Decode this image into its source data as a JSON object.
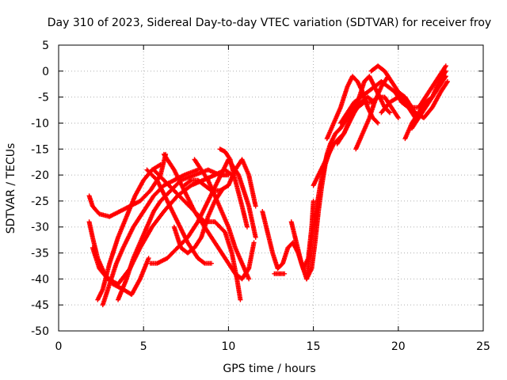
{
  "chart_data": {
    "type": "scatter",
    "title": "Day 310 of 2023, Sidereal Day-to-day VTEC variation (SDTVAR) for receiver froy",
    "xlabel": "GPS time / hours",
    "ylabel": "SDTVAR / TECUs",
    "xlim": [
      0,
      25
    ],
    "ylim": [
      -50,
      5
    ],
    "xticks": [
      0,
      5,
      10,
      15,
      20,
      25
    ],
    "yticks": [
      5,
      0,
      -5,
      -10,
      -15,
      -20,
      -25,
      -30,
      -35,
      -40,
      -45,
      -50
    ],
    "grid": true,
    "marker": "plus",
    "color": "#ff0000",
    "series": [
      {
        "x": [
          1.8,
          2.0,
          2.4,
          3.0,
          3.6,
          4.2,
          4.8,
          5.4,
          6.0,
          6.3
        ],
        "y": [
          -24,
          -26,
          -27.5,
          -28,
          -27,
          -26,
          -25,
          -23,
          -20,
          -16
        ]
      },
      {
        "x": [
          1.8,
          2.0,
          2.3,
          2.7,
          3.2,
          3.8,
          4.3,
          4.8,
          5.3
        ],
        "y": [
          -29,
          -32,
          -36,
          -39,
          -41,
          -42,
          -43,
          -40,
          -36
        ]
      },
      {
        "x": [
          2.0,
          2.4,
          2.9,
          3.5,
          4.2,
          4.8,
          5.5,
          6.2,
          7.0,
          7.8,
          8.5,
          9.2,
          9.8,
          10.2
        ],
        "y": [
          -34,
          -38,
          -40,
          -41,
          -38,
          -34,
          -30,
          -27,
          -24,
          -22,
          -21,
          -20,
          -19,
          -20
        ]
      },
      {
        "x": [
          2.3,
          2.6,
          3.0,
          3.5,
          4.0,
          4.5,
          5.0,
          5.5,
          6.0
        ],
        "y": [
          -44,
          -42,
          -37,
          -32,
          -28,
          -24,
          -21,
          -19,
          -18
        ]
      },
      {
        "x": [
          2.6,
          3.0,
          3.4,
          3.8,
          4.4,
          5.0,
          5.6,
          6.2,
          6.8,
          7.4,
          8.2
        ],
        "y": [
          -45,
          -41,
          -37,
          -34,
          -30,
          -27,
          -24,
          -22,
          -21,
          -20,
          -19
        ]
      },
      {
        "x": [
          3.5,
          4.0,
          4.4,
          4.8,
          5.2,
          5.6,
          6.0,
          6.6,
          7.2,
          8.0,
          8.8,
          9.5,
          10.0
        ],
        "y": [
          -44,
          -40,
          -36,
          -33,
          -30,
          -27,
          -25,
          -23,
          -21,
          -20,
          -19,
          -20,
          -20
        ]
      },
      {
        "x": [
          5.2,
          5.8,
          6.4,
          7.0,
          7.6,
          8.2,
          8.6,
          9.0
        ],
        "y": [
          -19,
          -21,
          -25,
          -29,
          -33,
          -36,
          -37,
          -37
        ]
      },
      {
        "x": [
          5.6,
          6.2,
          6.8,
          7.4,
          8.0,
          8.6,
          9.2,
          9.8,
          10.4,
          10.8,
          11.2,
          11.5
        ],
        "y": [
          -19,
          -21,
          -23,
          -25,
          -27,
          -30,
          -33,
          -36,
          -39,
          -40,
          -38,
          -33
        ]
      },
      {
        "x": [
          5.4,
          5.8,
          6.4,
          7.0,
          7.6,
          8.2,
          8.8,
          9.4,
          10.0,
          10.6,
          11.2,
          11.6
        ],
        "y": [
          -37,
          -37,
          -36,
          -34,
          -32,
          -29,
          -25,
          -21,
          -17,
          -20,
          -26,
          -32
        ]
      },
      {
        "x": [
          6.2,
          6.8,
          7.4,
          8.0,
          8.6,
          9.2,
          9.8,
          10.2,
          10.5,
          10.7
        ],
        "y": [
          -16,
          -19,
          -23,
          -27,
          -29,
          -29,
          -31,
          -35,
          -40,
          -44
        ]
      },
      {
        "x": [
          6.8,
          7.2,
          7.6,
          8.0,
          8.4,
          8.8,
          9.2,
          9.6
        ],
        "y": [
          -30,
          -34,
          -35,
          -34,
          -32,
          -28,
          -25,
          -23
        ]
      },
      {
        "x": [
          7.4,
          7.8,
          8.2,
          8.6,
          9.0,
          9.5,
          10.0,
          10.4,
          10.8,
          11.2,
          11.6
        ],
        "y": [
          -22,
          -21,
          -21,
          -22,
          -23,
          -23,
          -22,
          -19,
          -17,
          -20,
          -26
        ]
      },
      {
        "x": [
          8.0,
          8.4,
          8.8,
          9.2,
          9.6,
          10.0,
          10.4,
          10.8,
          11.2
        ],
        "y": [
          -17,
          -19,
          -21,
          -24,
          -27,
          -30,
          -34,
          -37,
          -40
        ]
      },
      {
        "x": [
          9.5,
          9.8,
          10.1,
          10.4,
          10.8,
          11.1
        ],
        "y": [
          -15,
          -15.5,
          -17,
          -21,
          -26,
          -30
        ]
      },
      {
        "x": [
          12.0,
          12.3,
          12.6,
          12.9,
          13.2,
          13.5,
          13.8,
          14.1,
          14.4,
          14.7,
          14.9,
          15.0
        ],
        "y": [
          -27,
          -31,
          -35,
          -38,
          -37,
          -34,
          -33,
          -35,
          -38,
          -36,
          -30,
          -25
        ]
      },
      {
        "x": [
          12.7,
          13.0,
          13.3
        ],
        "y": [
          -39,
          -39,
          -39
        ]
      },
      {
        "x": [
          13.7,
          14.0,
          14.3,
          14.6,
          14.9,
          15.1,
          15.3,
          15.5,
          15.7,
          16.0
        ],
        "y": [
          -29,
          -33,
          -37,
          -40,
          -38,
          -33,
          -27,
          -22,
          -18,
          -15
        ]
      },
      {
        "x": [
          14.6,
          14.8,
          15.0,
          15.2,
          15.4,
          15.6,
          15.8,
          16.0,
          16.3,
          16.6,
          17.0,
          17.4,
          17.8,
          18.2,
          18.6
        ],
        "y": [
          -40,
          -35,
          -30,
          -26,
          -22,
          -19,
          -16,
          -14,
          -12,
          -11,
          -9,
          -7,
          -6,
          -5,
          -6
        ]
      },
      {
        "x": [
          15.0,
          15.3,
          15.6,
          15.9,
          16.2,
          16.5,
          16.8,
          17.1,
          17.4,
          17.7,
          18.0,
          18.3,
          18.6,
          18.9,
          19.2,
          19.5
        ],
        "y": [
          -22,
          -20,
          -18,
          -16,
          -14,
          -13,
          -12,
          -10,
          -8,
          -5,
          -2,
          -1,
          -3,
          -5,
          -7,
          -8
        ]
      },
      {
        "x": [
          15.8,
          16.2,
          16.6,
          17.0,
          17.3,
          17.6,
          17.9,
          18.2,
          18.5,
          18.8
        ],
        "y": [
          -13,
          -10,
          -7,
          -3,
          -1,
          -2,
          -4,
          -7,
          -9,
          -10
        ]
      },
      {
        "x": [
          16.4,
          16.8,
          17.2,
          17.6,
          18.0,
          18.4,
          18.8,
          19.2,
          19.6,
          20.0
        ],
        "y": [
          -14,
          -12,
          -9,
          -7,
          -6,
          -6,
          -5,
          -5,
          -7,
          -9
        ]
      },
      {
        "x": [
          16.6,
          17.0,
          17.4,
          17.8,
          18.2,
          18.6,
          19.0,
          19.4,
          19.8,
          20.2,
          20.6,
          21.0
        ],
        "y": [
          -10,
          -8,
          -6,
          -5,
          -4,
          -3,
          -2,
          -3,
          -4,
          -6,
          -7,
          -9
        ]
      },
      {
        "x": [
          17.5,
          17.9,
          18.3,
          18.6,
          19.0,
          19.4
        ],
        "y": [
          -15,
          -12,
          -9,
          -6,
          -3,
          -1
        ]
      },
      {
        "x": [
          18.4,
          18.8,
          19.2,
          19.6,
          20.0,
          20.4,
          20.8
        ],
        "y": [
          0,
          1,
          0,
          -2,
          -4,
          -6,
          -7
        ]
      },
      {
        "x": [
          19.0,
          19.5,
          20.0,
          20.5,
          21.0,
          21.5,
          22.0,
          22.5,
          22.9
        ],
        "y": [
          -8,
          -6,
          -5,
          -6,
          -8,
          -9,
          -7,
          -4,
          -2
        ]
      },
      {
        "x": [
          20.0,
          20.4,
          20.8,
          21.2,
          21.6,
          22.0,
          22.4,
          22.8
        ],
        "y": [
          -4,
          -5,
          -7,
          -7,
          -5,
          -3,
          -1,
          1
        ]
      },
      {
        "x": [
          20.8,
          21.2,
          21.6,
          22.0,
          22.4,
          22.8
        ],
        "y": [
          -11,
          -9,
          -7,
          -5,
          -3,
          -1
        ]
      },
      {
        "x": [
          20.4,
          20.8,
          21.2,
          21.6,
          22.0,
          22.4,
          22.8
        ],
        "y": [
          -13,
          -10,
          -8,
          -6,
          -5,
          -2,
          0
        ]
      }
    ]
  }
}
